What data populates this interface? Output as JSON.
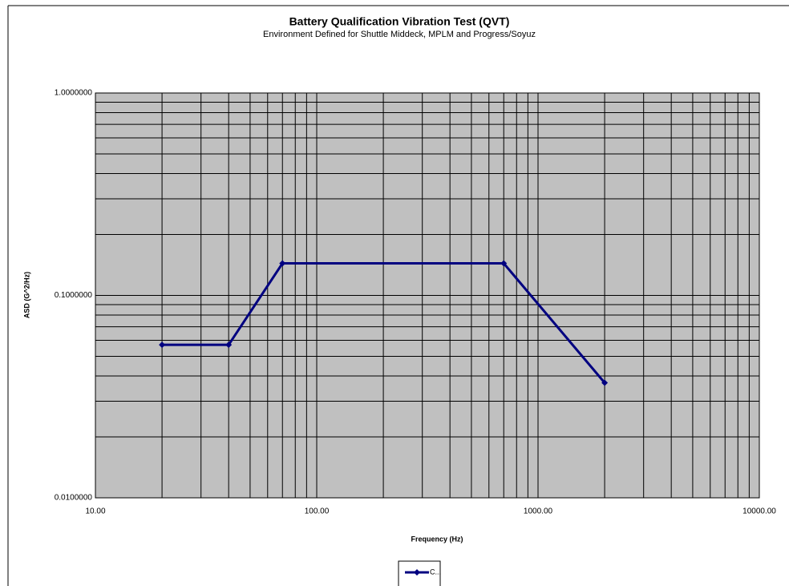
{
  "chart_data": {
    "type": "line",
    "title": "Battery Qualification Vibration Test (QVT)",
    "subtitle": "Environment  Defined for Shuttle  Middeck, MPLM and Progress/Soyuz",
    "x_label": "Frequency  (Hz)",
    "y_label": "ASD (G^2/Hz)",
    "x": [
      20,
      40,
      70,
      700,
      2000
    ],
    "series": [
      {
        "name": "C...",
        "color": "#000080",
        "values": [
          0.057,
          0.057,
          0.144,
          0.144,
          0.037
        ]
      }
    ],
    "xlim": [
      10,
      10000
    ],
    "ylim": [
      0.01,
      1
    ],
    "xticks": [
      {
        "value": 10,
        "label": "10.00"
      },
      {
        "value": 100,
        "label": "100.00"
      },
      {
        "value": 1000,
        "label": "1000.00"
      },
      {
        "value": 10000,
        "label": "10000.00"
      }
    ],
    "yticks": [
      {
        "value": 0.01,
        "label": "0.0100000"
      },
      {
        "value": 0.1,
        "label": "0.1000000"
      },
      {
        "value": 1,
        "label": "1.0000000"
      }
    ],
    "x_log": true,
    "y_log": true,
    "grid": true,
    "minor_grid": true,
    "plot_background": "#c0c0c0",
    "legend": "bottom"
  }
}
